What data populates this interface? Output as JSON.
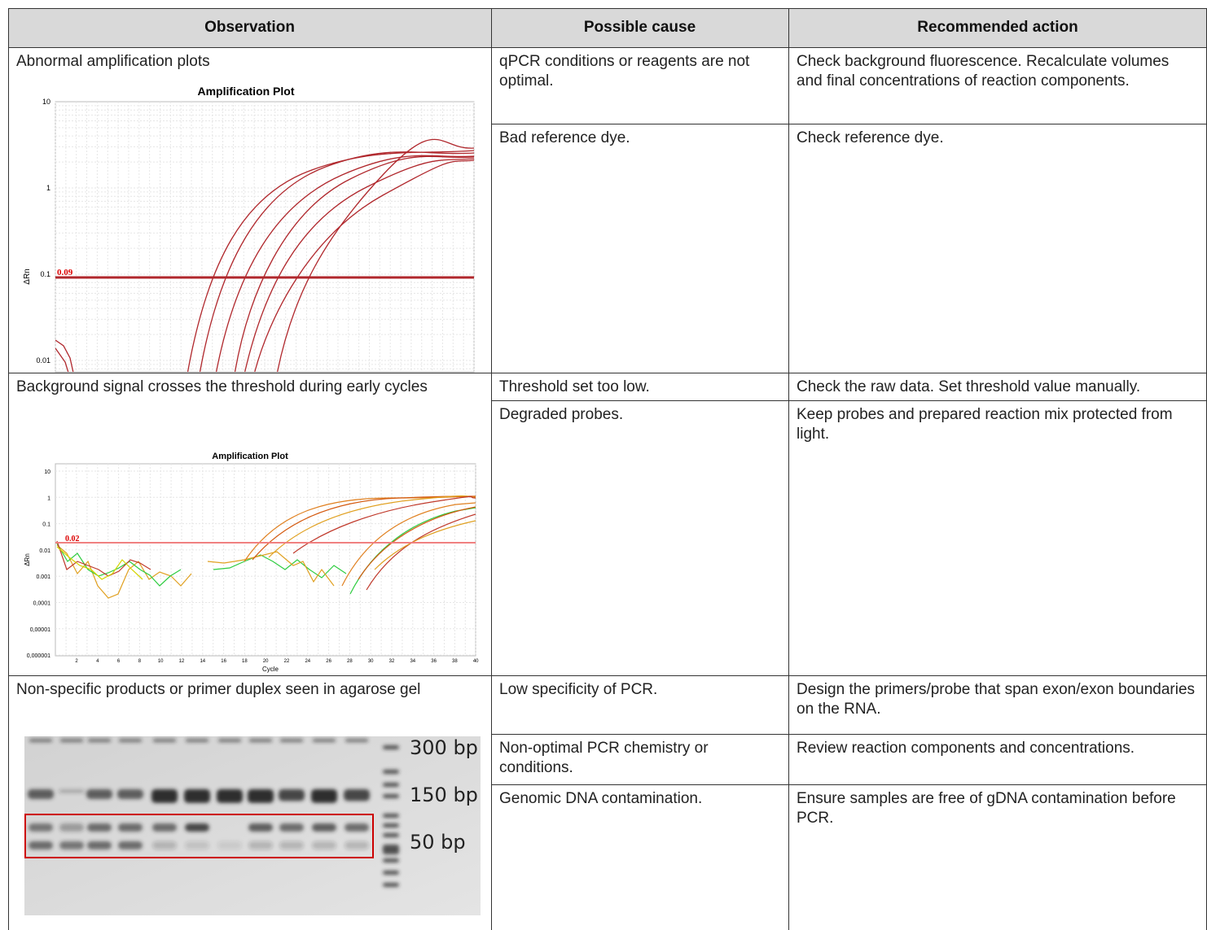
{
  "table": {
    "headers": [
      "Observation",
      "Possible cause",
      "Recommended action"
    ],
    "rows": [
      {
        "observation": "Abnormal amplification plots",
        "figure": {
          "title": "Amplification Plot",
          "y_label": "ΔRn",
          "threshold_label": "0.09",
          "yticks": [
            "10",
            "1",
            "0.1",
            "0.01"
          ]
        },
        "causes": [
          {
            "cause": "qPCR conditions or reagents are not optimal.",
            "action": "Check background fluorescence. Recalculate volumes and final concentrations of reaction components."
          },
          {
            "cause": "Bad reference dye.",
            "action": "Check reference dye."
          }
        ]
      },
      {
        "observation": "Background signal crosses the threshold during early cycles",
        "figure": {
          "title": "Amplification Plot",
          "y_label": "ΔRn",
          "x_label": "Cycle",
          "threshold_label": "0.02",
          "yticks": [
            "10",
            "1",
            "0.1",
            "0.01",
            "0.001",
            "0,0001",
            "0,00001",
            "0,000001"
          ],
          "xticks": [
            "2",
            "4",
            "6",
            "8",
            "10",
            "12",
            "14",
            "16",
            "18",
            "20",
            "22",
            "24",
            "26",
            "28",
            "30",
            "32",
            "34",
            "36",
            "38",
            "40"
          ]
        },
        "causes": [
          {
            "cause": "Threshold set too low.",
            "action": "Check the raw data. Set threshold value manually."
          },
          {
            "cause": "Degraded probes.",
            "action": "Keep probes and prepared reaction mix protected from light."
          }
        ]
      },
      {
        "observation": "Non-specific products or primer duplex seen in agarose gel",
        "figure": {
          "ladder_labels": [
            "300 bp",
            "150 bp",
            "50 bp"
          ]
        },
        "causes": [
          {
            "cause": "Low specificity of PCR.",
            "action": "Design the primers/probe that span exon/exon boundaries on the RNA."
          },
          {
            "cause": "Non-optimal PCR chemistry or conditions.",
            "action": "Review reaction components and concentrations."
          },
          {
            "cause": "Genomic DNA contamination.",
            "action": "Ensure samples are free of gDNA contamination before PCR."
          }
        ]
      }
    ]
  }
}
